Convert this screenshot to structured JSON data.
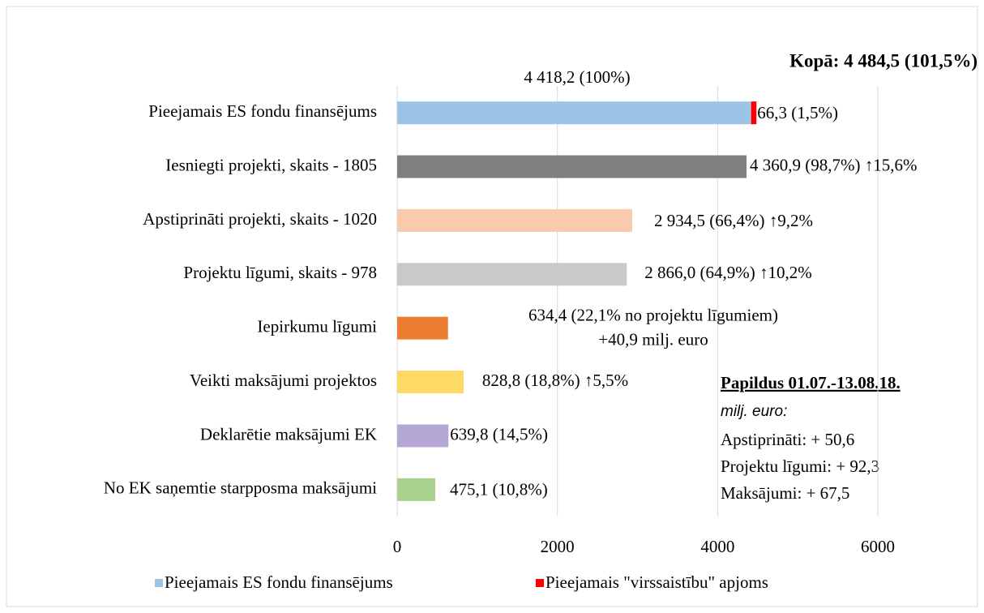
{
  "chart_data": {
    "type": "bar",
    "orientation": "horizontal",
    "categories": [
      "Pieejamais ES fondu finansējums",
      "Iesniegti projekti, skaits - 1805",
      "Apstiprināti projekti, skaits - 1020",
      "Projektu līgumi, skaits - 978",
      "Iepirkumu līgumi",
      "Veikti maksājumi projektos",
      "Deklarētie maksājumi EK",
      "No EK saņemtie starpposma maksājumi"
    ],
    "series": [
      {
        "name": "Pieejamais ES fondu finansējums",
        "color": "#9dc3e6",
        "colors": [
          "#9dc3e6",
          "#7f7f7f",
          "#f8cbad",
          "#c9c9c9",
          "#ed7d31",
          "#ffd966",
          "#b4a7d6",
          "#a9d18e"
        ],
        "values": [
          4418.2,
          4360.9,
          2934.5,
          2866.0,
          634.4,
          828.8,
          639.8,
          475.1
        ],
        "value_labels": [
          "4 418,2 (100%)",
          "4 360,9 (98,7%) ↑15,6%",
          "2 934,5 (66,4%) ↑9,2%",
          "2 866,0 (64,9%) ↑10,2%",
          [
            "634,4 (22,1% no projektu līgumiem)",
            "+40,9 milj. euro"
          ],
          "828,8 (18,8%) ↑5,5%",
          "639,8 (14,5%)",
          "475,1 (10,8%)"
        ]
      },
      {
        "name": "Pieejamais \"virssaistību\" apjoms",
        "color": "#ff0000",
        "values": [
          66.3,
          null,
          null,
          null,
          null,
          null,
          null,
          null
        ],
        "value_labels": [
          "66,3 (1,5%)",
          null,
          null,
          null,
          null,
          null,
          null,
          null
        ]
      }
    ],
    "stacked": true,
    "xlim": [
      0,
      6000
    ],
    "xticks": [
      0,
      2000,
      4000,
      6000
    ],
    "grid": true,
    "legend": "bottom",
    "annotations": {
      "total": "Kopā: 4 484,5 (101,5%)",
      "note_title": "Papildus 01.07.-13.08.18.",
      "note_unit": "milj. euro:",
      "note_lines": [
        "Apstiprināti: + 50,6",
        "Projektu līgumi: + 92,3",
        "Maksājumi: + 67,5"
      ]
    }
  }
}
